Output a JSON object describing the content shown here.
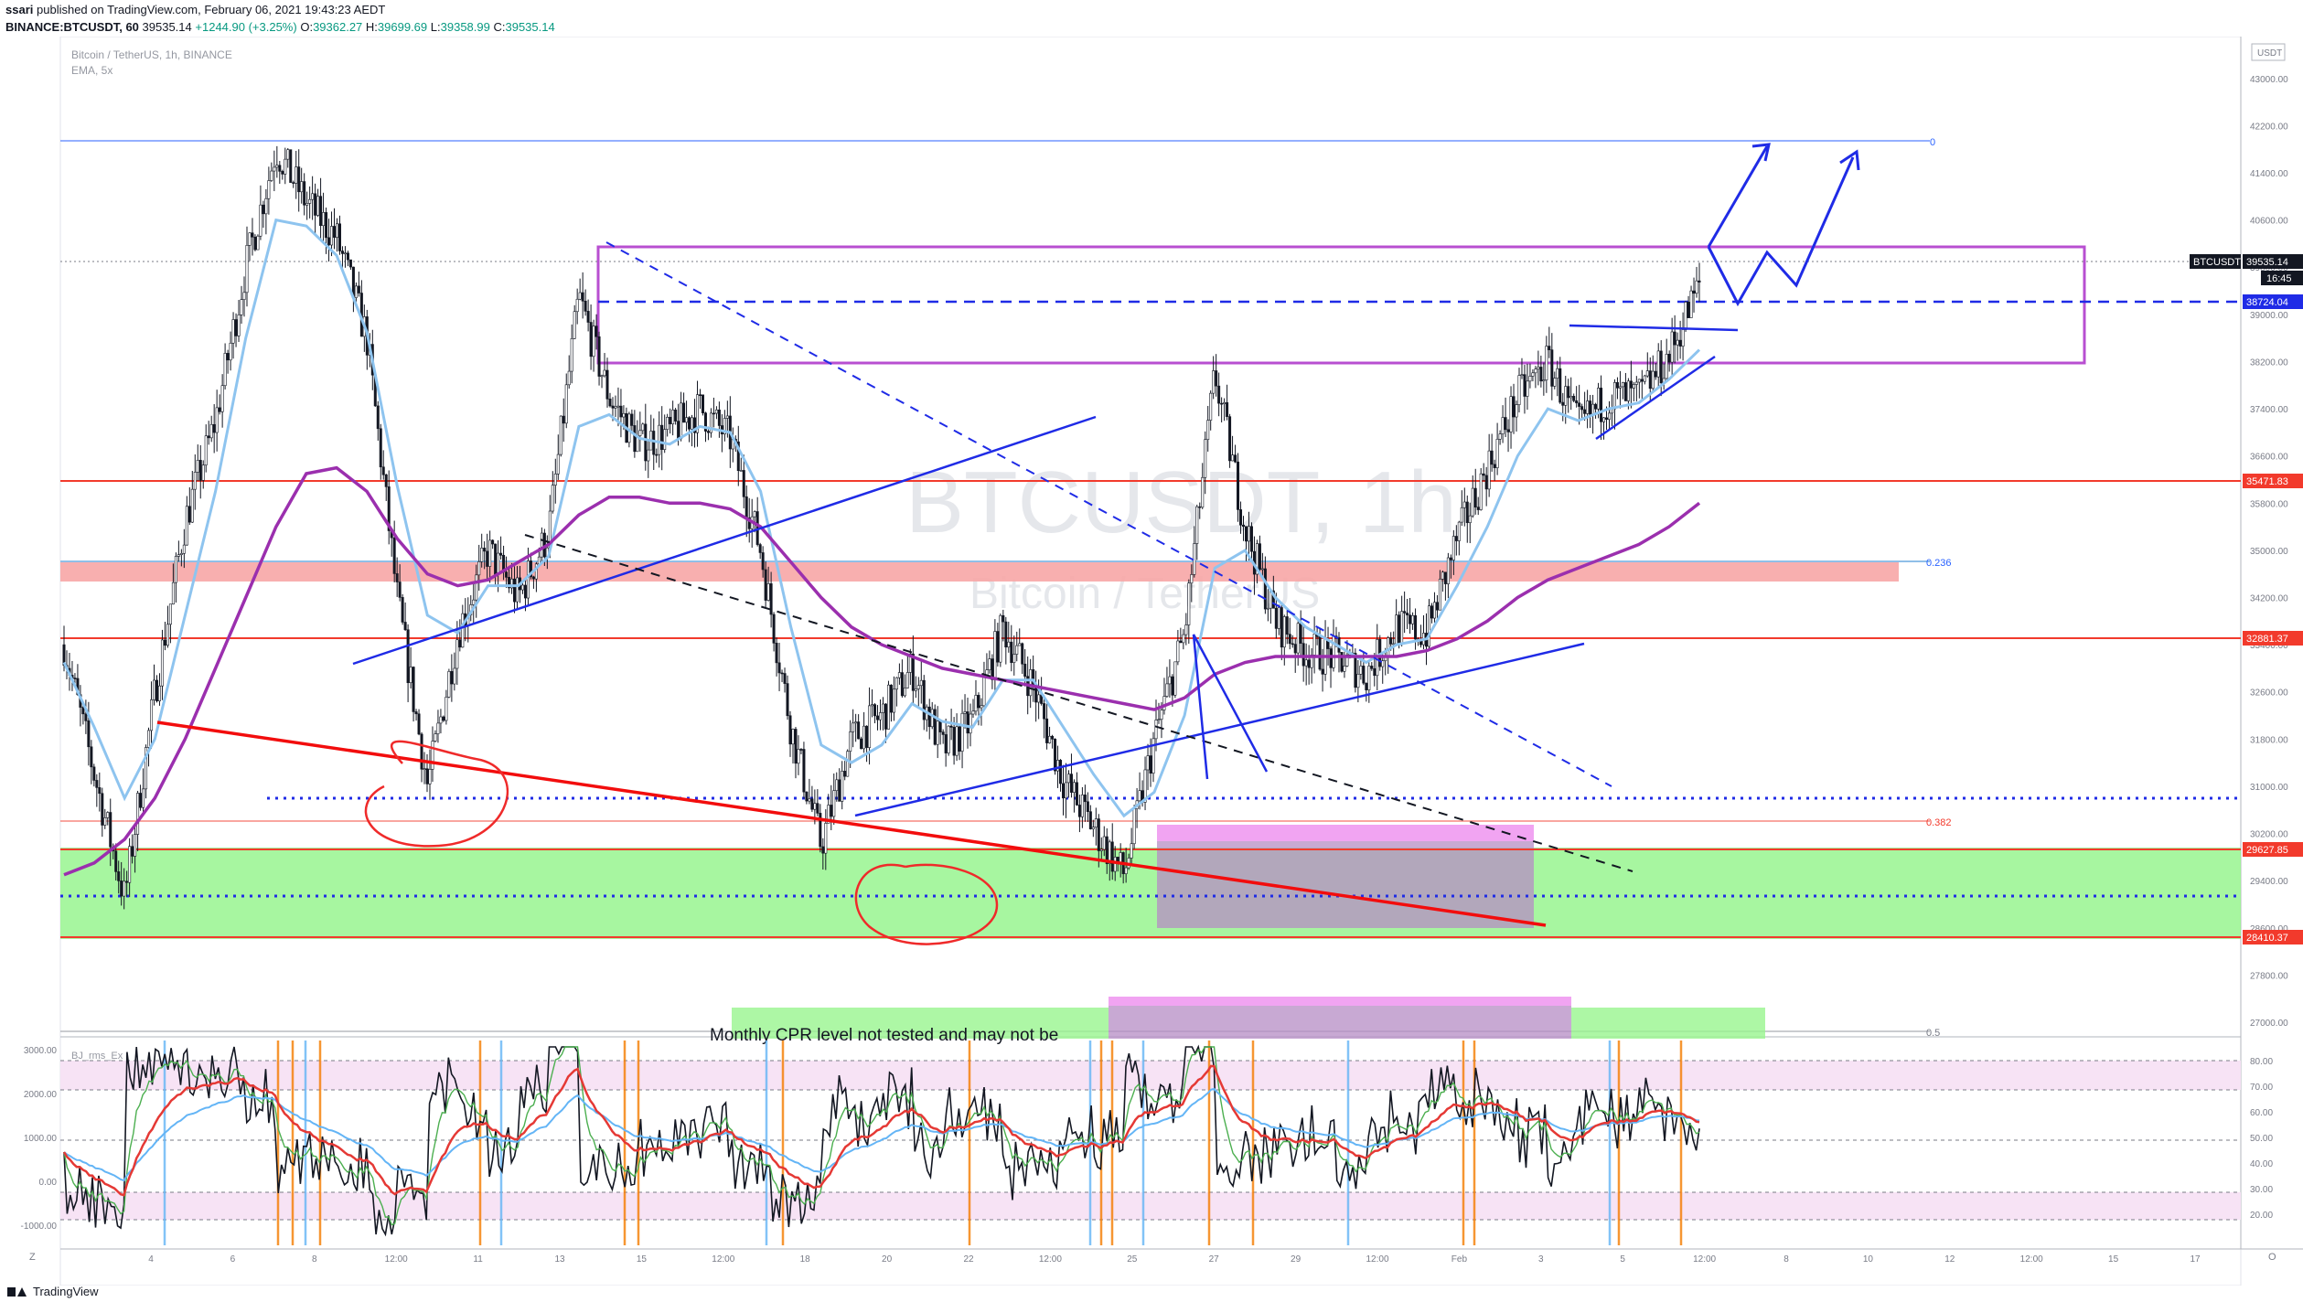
{
  "header": {
    "publisher": "ssari",
    "published_text": "published on TradingView.com, February 06, 2021 19:43:23 AEDT",
    "symbol": "BINANCE:BTCUSDT, 60",
    "price": "39535.14",
    "change": "+1244.90 (+3.25%)",
    "o_label": "O:",
    "o": "39362.27",
    "h_label": "H:",
    "h": "39699.69",
    "l_label": "L:",
    "l": "39358.99",
    "c_label": "C:",
    "c": "39535.14"
  },
  "legend": {
    "title": "Bitcoin / TetherUS, 1h, BINANCE",
    "indicator": "EMA, 5x",
    "osc_label": "BJ_rms_Ex"
  },
  "watermark": {
    "symbol": "BTCUSDT, 1h",
    "name": "Bitcoin / TetherUS"
  },
  "toolbar": {
    "currency": "USDT"
  },
  "price_tags": {
    "last_symbol": "BTCUSDT",
    "last_price": "39535.14",
    "countdown": "16:45",
    "blue_level": "38724.04",
    "red1": "35471.83",
    "red2": "32881.37",
    "red3": "29627.85",
    "red4": "28410.37"
  },
  "fib": {
    "f0": "0",
    "f236": "0.236",
    "f382": "0.382",
    "f5": "0.5"
  },
  "annotation": {
    "note": "Monthly CPR level not tested and may not be"
  },
  "footer": {
    "brand": "TradingView",
    "bottom_left": "Z",
    "bottom_right": "O"
  },
  "chart_data": {
    "type": "line",
    "title": "Bitcoin / TetherUS, 1h, BINANCE",
    "x_ticks": [
      "4",
      "6",
      "8",
      "12:00",
      "11",
      "13",
      "15",
      "12:00",
      "18",
      "20",
      "22",
      "12:00",
      "25",
      "27",
      "29",
      "12:00",
      "Feb",
      "3",
      "5",
      "12:00",
      "8",
      "10",
      "12",
      "12:00",
      "15",
      "17"
    ],
    "y_ticks": [
      43000,
      42200,
      41400,
      40600,
      39800,
      39000,
      38200,
      37400,
      36600,
      35800,
      35000,
      34200,
      33400,
      32600,
      31800,
      31000,
      30200,
      29400,
      28600,
      27800,
      27000
    ],
    "ylim": [
      27000,
      43400
    ],
    "osc_y_ticks": [
      "3000.00",
      "2000.00",
      "1000.00",
      "0.00",
      "-1000.00"
    ],
    "osc_right_ticks": [
      "80.00",
      "70.00",
      "60.00",
      "50.00",
      "40.00",
      "30.00",
      "20.00"
    ],
    "series": [
      {
        "name": "BTCUSDT close (approx.)",
        "values": [
          33400,
          31200,
          29100,
          32600,
          35500,
          37200,
          39800,
          41800,
          40900,
          40300,
          38600,
          34200,
          31000,
          33600,
          35000,
          34200,
          35300,
          39300,
          37600,
          36800,
          37000,
          37400,
          36900,
          35000,
          32000,
          30000,
          31800,
          32200,
          33000,
          31600,
          32100,
          33700,
          32700,
          31100,
          30300,
          29500,
          31800,
          33600,
          38000,
          35400,
          33800,
          33300,
          33200,
          32900,
          33700,
          33600,
          35200,
          36400,
          37600,
          38200,
          37100,
          37600,
          37600,
          38300,
          39500
        ]
      },
      {
        "name": "EMA fast (approx.)",
        "values": [
          33100,
          32000,
          30800,
          31800,
          33900,
          36000,
          38600,
          40600,
          40500,
          40000,
          38700,
          36100,
          33900,
          33600,
          34400,
          34400,
          34900,
          37100,
          37300,
          36900,
          36800,
          37100,
          37000,
          36000,
          33700,
          31700,
          31400,
          31700,
          32400,
          32100,
          32000,
          32800,
          32800,
          32000,
          31200,
          30500,
          30900,
          32200,
          34700,
          35000,
          34200,
          33700,
          33400,
          33100,
          33400,
          33500,
          34400,
          35400,
          36600,
          37400,
          37200,
          37400,
          37500,
          37900,
          38400
        ]
      },
      {
        "name": "EMA slow (approx.)",
        "values": [
          29500,
          29700,
          30100,
          30800,
          31800,
          33000,
          34200,
          35400,
          36300,
          36400,
          36000,
          35200,
          34600,
          34400,
          34500,
          34800,
          35100,
          35600,
          35900,
          35900,
          35800,
          35800,
          35700,
          35400,
          34800,
          34200,
          33700,
          33400,
          33200,
          33000,
          32900,
          32800,
          32700,
          32600,
          32500,
          32400,
          32300,
          32500,
          32900,
          33100,
          33200,
          33200,
          33200,
          33200,
          33200,
          33300,
          33500,
          33800,
          34200,
          34500,
          34700,
          34900,
          35100,
          35400,
          35800
        ]
      }
    ],
    "levels": {
      "fib_0": 42000,
      "blue_dashed": 38724.04,
      "red_35471": 35471.83,
      "fib_0236": 34100,
      "red_32881": 32881.37,
      "blue_dotted_upper": 30300,
      "fib_0382": 30150,
      "red_29627": 29627.85,
      "blue_dotted_lower": 28900,
      "red_28410": 28410.37,
      "fib_05": 27050
    }
  }
}
